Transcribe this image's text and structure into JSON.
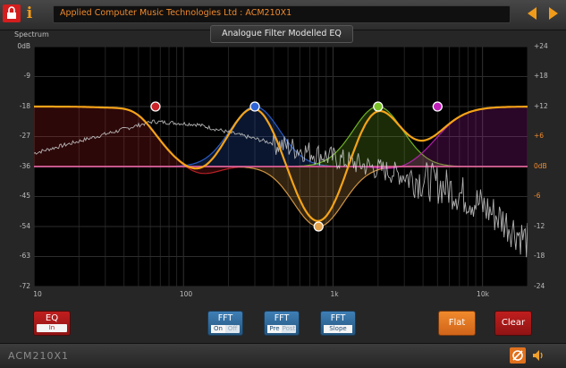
{
  "header": {
    "title": "Applied Computer Music Technologies Ltd  :  ACM210X1",
    "lock_icon": "lock-icon",
    "info_icon": "info-icon",
    "prev_icon": "triangle-left-icon",
    "next_icon": "triangle-right-icon"
  },
  "plugin": {
    "heading": "Analogue Filter Modelled EQ",
    "spectrum_label": "Spectrum"
  },
  "axes": {
    "left_ticks": [
      "0dB",
      "-9",
      "-18",
      "-27",
      "-36",
      "-45",
      "-54",
      "-63",
      "-72"
    ],
    "right_ticks": [
      "+24",
      "+18",
      "+12",
      "+6",
      "0dB",
      "-6",
      "-12",
      "-18",
      "-24"
    ],
    "x_ticks": [
      "10",
      "100",
      "1k",
      "10k"
    ],
    "x_range_hz": [
      10,
      20000
    ],
    "left_range_db": [
      -72,
      0
    ],
    "right_range_db": [
      -24,
      24
    ]
  },
  "bands": [
    {
      "name": "band-1",
      "type": "low-shelf",
      "color": "#c8242a",
      "freq_hz": 65,
      "gain_db": 12
    },
    {
      "name": "band-2",
      "type": "peak",
      "color": "#2e64d6",
      "freq_hz": 300,
      "gain_db": 12
    },
    {
      "name": "band-3",
      "type": "peak",
      "color": "#e3a24a",
      "freq_hz": 800,
      "gain_db": -12
    },
    {
      "name": "band-4",
      "type": "peak",
      "color": "#7ac226",
      "freq_hz": 2000,
      "gain_db": 12
    },
    {
      "name": "band-5",
      "type": "high-shelf",
      "color": "#c020b8",
      "freq_hz": 5000,
      "gain_db": 12
    }
  ],
  "colors": {
    "combined_curve": "#f5a318",
    "zero_line": "#e35da0",
    "spectrum_line": "#cfcfcf"
  },
  "controls": {
    "eq": {
      "label": "EQ",
      "state": "In"
    },
    "fft_power": {
      "label": "FFT",
      "on": "On",
      "off": "Off",
      "selected": "On"
    },
    "fft_mode": {
      "label": "FFT",
      "pre": "Pre",
      "post": "Post",
      "selected": "Pre"
    },
    "fft_slope": {
      "label": "FFT",
      "value": "Slope"
    },
    "flat": "Flat",
    "clear": "Clear"
  },
  "footer": {
    "model": "ACM210X1",
    "bypass_icon": "bypass-icon",
    "speaker_icon": "speaker-icon"
  }
}
